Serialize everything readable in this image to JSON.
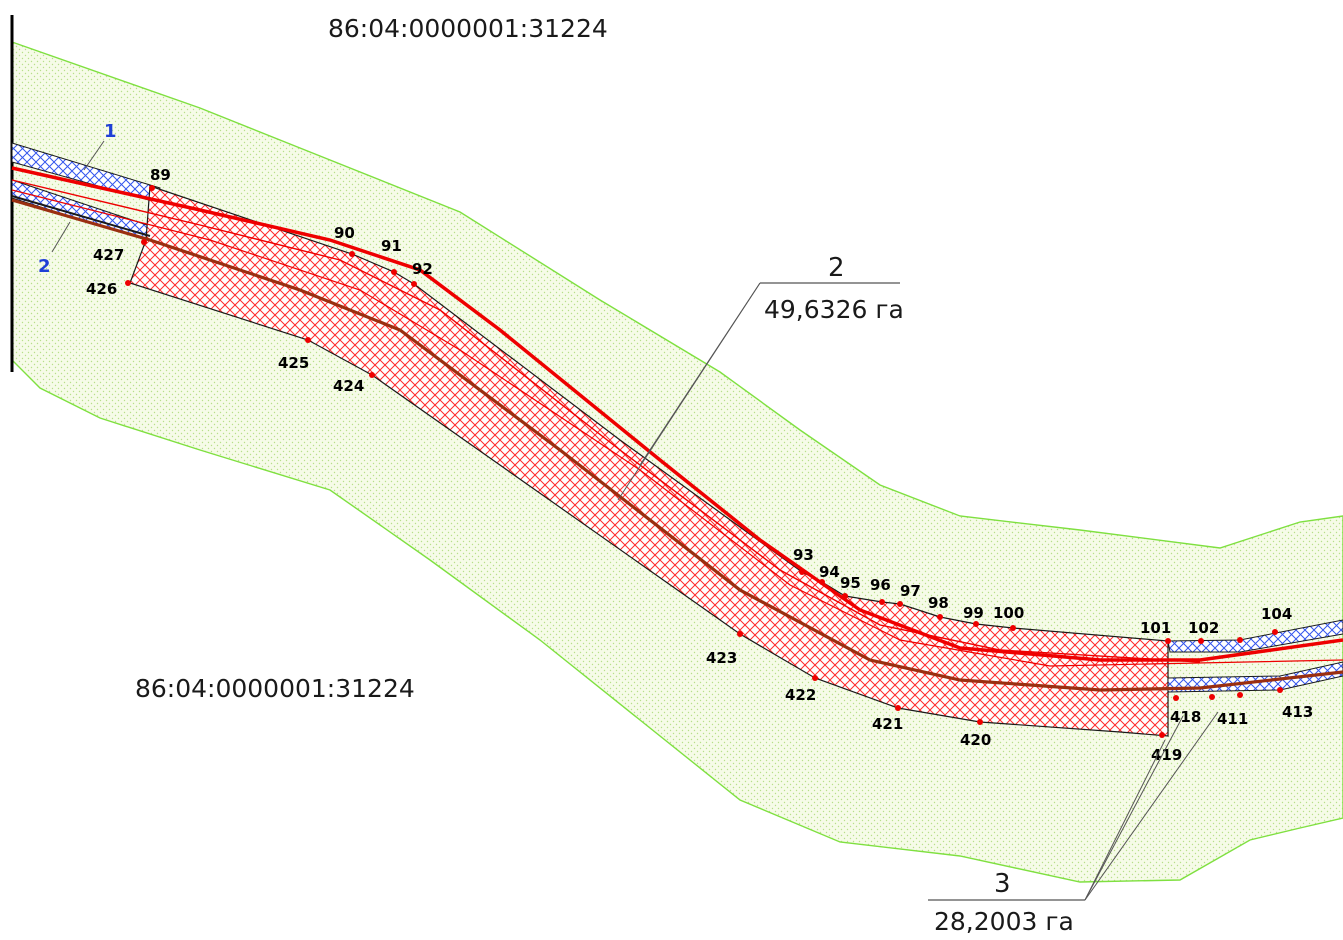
{
  "cadastral_labels": [
    {
      "id": "top",
      "text": "86:04:0000001:31224"
    },
    {
      "id": "bottom",
      "text": "86:04:0000001:31224"
    }
  ],
  "line_numbers": [
    {
      "id": "line-1",
      "text": "1"
    },
    {
      "id": "line-2",
      "text": "2"
    }
  ],
  "callouts": [
    {
      "id": "callout-2",
      "number": "2",
      "area": "49,6326 га"
    },
    {
      "id": "callout-3",
      "number": "3",
      "area": "28,2003 га"
    }
  ],
  "points": [
    "89",
    "90",
    "91",
    "92",
    "93",
    "94",
    "95",
    "96",
    "97",
    "98",
    "99",
    "100",
    "101",
    "102",
    "104",
    "411",
    "413",
    "418",
    "419",
    "420",
    "421",
    "422",
    "423",
    "424",
    "425",
    "426",
    "427"
  ],
  "colors": {
    "zone_fill": "#f4fbe4",
    "zone_border": "#7fe040",
    "hatch_red": "#ff2a2a",
    "hatch_blue": "#3355ee",
    "axis_red": "#ee0000",
    "axis_brown": "#9a2f10",
    "outline": "#1a1a1a"
  }
}
